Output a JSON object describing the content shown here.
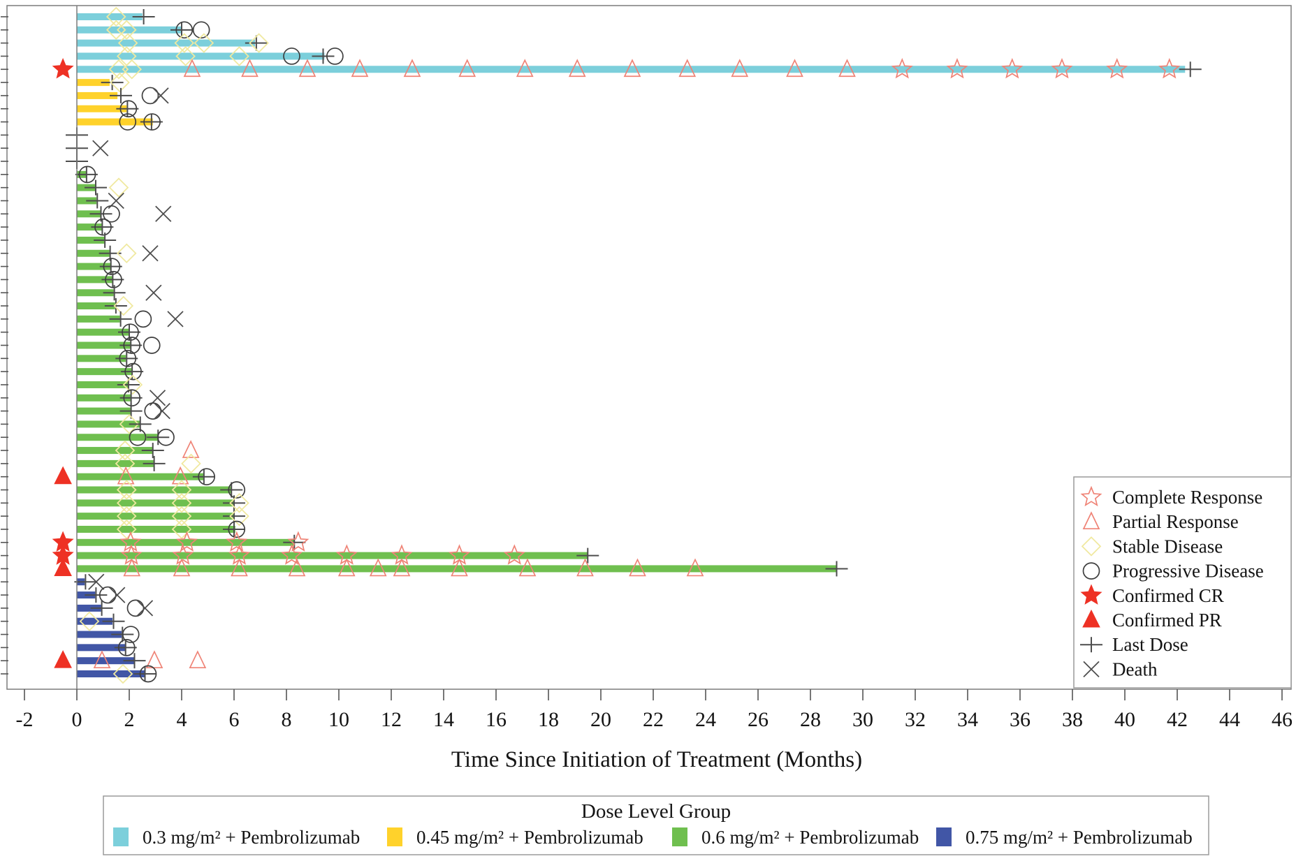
{
  "chart_data": {
    "type": "swimmer",
    "xlabel": "Time Since Initiation of Treatment (Months)",
    "x_ticks": [
      -2,
      0,
      2,
      4,
      6,
      8,
      10,
      12,
      14,
      16,
      18,
      20,
      22,
      24,
      26,
      28,
      30,
      32,
      34,
      36,
      38,
      40,
      42,
      44,
      46
    ],
    "xlim": [
      -2.67,
      46.35
    ],
    "grid": false,
    "colors": {
      "group1": "#7CCFDB",
      "group2": "#FFD22B",
      "group3": "#6FBF4F",
      "group4": "#4156A6",
      "confirmed_red": "#EE3124",
      "open_red": "#EF8376",
      "stable_yellow": "#F0E9A0",
      "circle_gray": "#3F3F3F",
      "cross_gray": "#4D4D4D",
      "axis_gray": "#7B7B7B",
      "text": "#141414"
    },
    "dose_legend": {
      "title": "Dose Level Group",
      "entries": [
        {
          "label": "0.3 mg/m² + Pembrolizumab",
          "color": "#7CCFDB"
        },
        {
          "label": "0.45 mg/m² + Pembrolizumab",
          "color": "#FFD22B"
        },
        {
          "label": "0.6 mg/m² + Pembrolizumab",
          "color": "#6FBF4F"
        },
        {
          "label": "0.75 mg/m² + Pembrolizumab",
          "color": "#4156A6"
        }
      ]
    },
    "marker_legend": [
      {
        "label": "Complete Response",
        "marker": "s"
      },
      {
        "label": "Partial Response",
        "marker": "t"
      },
      {
        "label": "Stable Disease",
        "marker": "d"
      },
      {
        "label": "Progressive Disease",
        "marker": "c"
      },
      {
        "label": "Confirmed CR",
        "marker": "S"
      },
      {
        "label": "Confirmed PR",
        "marker": "T"
      },
      {
        "label": "Last Dose",
        "marker": "p"
      },
      {
        "label": "Death",
        "marker": "x"
      }
    ],
    "marker_key": {
      "p": "last-dose",
      "x": "death",
      "c": "progressive-disease",
      "d": "stable-disease",
      "t": "partial-response",
      "s": "complete-response",
      "S": "confirmed-cr",
      "T": "confirmed-pr"
    },
    "patients": [
      {
        "g": 0,
        "bar": 2.5,
        "mk": [
          [
            "d",
            1.5
          ],
          [
            "p",
            2.55
          ]
        ]
      },
      {
        "g": 0,
        "bar": 4.0,
        "mk": [
          [
            "d",
            1.5
          ],
          [
            "d",
            1.9
          ],
          [
            "p",
            4.0
          ],
          [
            "c",
            4.1
          ],
          [
            "c",
            4.75
          ]
        ]
      },
      {
        "g": 0,
        "bar": 6.8,
        "mk": [
          [
            "d",
            1.95
          ],
          [
            "d",
            4.1
          ],
          [
            "d",
            4.85
          ],
          [
            "p",
            6.85
          ],
          [
            "d",
            6.95
          ]
        ]
      },
      {
        "g": 0,
        "bar": 9.45,
        "mk": [
          [
            "d",
            1.9
          ],
          [
            "d",
            4.15
          ],
          [
            "d",
            6.2
          ],
          [
            "c",
            8.2
          ],
          [
            "p",
            9.4
          ],
          [
            "c",
            9.85
          ]
        ]
      },
      {
        "g": 0,
        "bar": 42.3,
        "mk": [
          [
            "S",
            -0.53
          ],
          [
            "d",
            1.6
          ],
          [
            "d",
            2.1
          ],
          [
            "t",
            4.4
          ],
          [
            "t",
            6.6
          ],
          [
            "t",
            8.8
          ],
          [
            "t",
            10.8
          ],
          [
            "t",
            12.8
          ],
          [
            "t",
            14.9
          ],
          [
            "t",
            17.1
          ],
          [
            "t",
            19.1
          ],
          [
            "t",
            21.2
          ],
          [
            "t",
            23.3
          ],
          [
            "t",
            25.3
          ],
          [
            "t",
            27.4
          ],
          [
            "t",
            29.4
          ],
          [
            "s",
            31.5
          ],
          [
            "s",
            33.6
          ],
          [
            "s",
            35.7
          ],
          [
            "s",
            37.6
          ],
          [
            "s",
            39.7
          ],
          [
            "s",
            41.7
          ],
          [
            "p",
            42.5
          ]
        ]
      },
      {
        "g": 1,
        "bar": 1.25,
        "mk": [
          [
            "p",
            1.35
          ],
          [
            "d",
            1.64
          ]
        ]
      },
      {
        "g": 1,
        "bar": 1.55,
        "mk": [
          [
            "p",
            1.68
          ],
          [
            "c",
            2.8
          ],
          [
            "x",
            3.2
          ]
        ]
      },
      {
        "g": 1,
        "bar": 1.9,
        "mk": [
          [
            "p",
            1.93
          ],
          [
            "c",
            1.97
          ]
        ]
      },
      {
        "g": 1,
        "bar": 2.9,
        "mk": [
          [
            "c",
            1.94
          ],
          [
            "p",
            2.85
          ],
          [
            "c",
            2.87
          ]
        ]
      },
      {
        "g": -1,
        "bar": 0,
        "mk": [
          [
            "p",
            0
          ]
        ]
      },
      {
        "g": -1,
        "bar": 0,
        "mk": [
          [
            "p",
            0
          ],
          [
            "x",
            0.9
          ]
        ]
      },
      {
        "g": -1,
        "bar": 0,
        "mk": [
          [
            "p",
            0
          ]
        ]
      },
      {
        "g": 2,
        "bar": 0.35,
        "mk": [
          [
            "p",
            0.37
          ],
          [
            "c",
            0.4
          ]
        ]
      },
      {
        "g": 2,
        "bar": 0.7,
        "mk": [
          [
            "p",
            0.72
          ],
          [
            "d",
            1.6
          ]
        ]
      },
      {
        "g": 2,
        "bar": 0.75,
        "mk": [
          [
            "p",
            0.78
          ],
          [
            "x",
            1.5
          ]
        ]
      },
      {
        "g": 2,
        "bar": 0.9,
        "mk": [
          [
            "p",
            0.92
          ],
          [
            "c",
            1.32
          ],
          [
            "x",
            3.3
          ]
        ]
      },
      {
        "g": 2,
        "bar": 0.95,
        "mk": [
          [
            "p",
            0.97
          ],
          [
            "c",
            1.0
          ]
        ]
      },
      {
        "g": 2,
        "bar": 1.05,
        "mk": [
          [
            "p",
            1.07
          ]
        ]
      },
      {
        "g": 2,
        "bar": 1.25,
        "mk": [
          [
            "p",
            1.27
          ],
          [
            "d",
            1.9
          ],
          [
            "x",
            2.8
          ]
        ]
      },
      {
        "g": 2,
        "bar": 1.28,
        "mk": [
          [
            "p",
            1.3
          ],
          [
            "c",
            1.33
          ]
        ]
      },
      {
        "g": 2,
        "bar": 1.35,
        "mk": [
          [
            "p",
            1.37
          ],
          [
            "c",
            1.4
          ]
        ]
      },
      {
        "g": 2,
        "bar": 1.4,
        "mk": [
          [
            "p",
            1.43
          ],
          [
            "x",
            2.93
          ]
        ]
      },
      {
        "g": 2,
        "bar": 1.46,
        "mk": [
          [
            "p",
            1.49
          ],
          [
            "d",
            1.78
          ]
        ]
      },
      {
        "g": 2,
        "bar": 1.64,
        "mk": [
          [
            "p",
            1.67
          ],
          [
            "c",
            2.53
          ],
          [
            "x",
            3.76
          ]
        ]
      },
      {
        "g": 2,
        "bar": 2.0,
        "mk": [
          [
            "p",
            2.0
          ],
          [
            "c",
            2.04
          ]
        ]
      },
      {
        "g": 2,
        "bar": 2.05,
        "mk": [
          [
            "p",
            2.06
          ],
          [
            "c",
            2.1
          ],
          [
            "c",
            2.86
          ]
        ]
      },
      {
        "g": 2,
        "bar": 1.87,
        "mk": [
          [
            "p",
            1.9
          ],
          [
            "c",
            1.94
          ]
        ]
      },
      {
        "g": 2,
        "bar": 2.09,
        "mk": [
          [
            "p",
            2.11
          ],
          [
            "c",
            2.15
          ]
        ]
      },
      {
        "g": 2,
        "bar": 1.95,
        "mk": [
          [
            "p",
            1.97
          ],
          [
            "d",
            2.13
          ]
        ]
      },
      {
        "g": 2,
        "bar": 2.05,
        "mk": [
          [
            "p",
            2.07
          ],
          [
            "c",
            2.1
          ],
          [
            "x",
            3.08
          ]
        ]
      },
      {
        "g": 2,
        "bar": 2.05,
        "mk": [
          [
            "p",
            2.07
          ],
          [
            "c",
            2.9
          ],
          [
            "x",
            3.26
          ]
        ]
      },
      {
        "g": 2,
        "bar": 2.4,
        "mk": [
          [
            "d",
            2.0
          ],
          [
            "p",
            2.42
          ]
        ]
      },
      {
        "g": 2,
        "bar": 3.08,
        "mk": [
          [
            "c",
            2.32
          ],
          [
            "p",
            3.1
          ],
          [
            "c",
            3.4
          ]
        ]
      },
      {
        "g": 2,
        "bar": 2.9,
        "mk": [
          [
            "d",
            1.84
          ],
          [
            "p",
            2.9
          ],
          [
            "t",
            4.35
          ]
        ]
      },
      {
        "g": 2,
        "bar": 2.95,
        "mk": [
          [
            "d",
            1.84
          ],
          [
            "p",
            2.95
          ],
          [
            "d",
            4.36
          ]
        ]
      },
      {
        "g": 2,
        "bar": 4.85,
        "mk": [
          [
            "T",
            -0.53
          ],
          [
            "t",
            1.87
          ],
          [
            "t",
            3.95
          ],
          [
            "p",
            4.85
          ],
          [
            "c",
            4.95
          ]
        ]
      },
      {
        "g": 2,
        "bar": 5.9,
        "mk": [
          [
            "d",
            1.9
          ],
          [
            "d",
            4.0
          ],
          [
            "p",
            5.9
          ],
          [
            "c",
            6.1
          ]
        ]
      },
      {
        "g": 2,
        "bar": 6.0,
        "mk": [
          [
            "d",
            1.9
          ],
          [
            "d",
            4.0
          ],
          [
            "p",
            6.0
          ],
          [
            "d",
            6.2
          ]
        ]
      },
      {
        "g": 2,
        "bar": 6.0,
        "mk": [
          [
            "d",
            1.9
          ],
          [
            "d",
            4.0
          ],
          [
            "p",
            6.0
          ],
          [
            "d",
            6.2
          ]
        ]
      },
      {
        "g": 2,
        "bar": 6.05,
        "mk": [
          [
            "d",
            1.9
          ],
          [
            "d",
            4.0
          ],
          [
            "p",
            6.0
          ],
          [
            "c",
            6.1
          ]
        ]
      },
      {
        "g": 2,
        "bar": 8.3,
        "mk": [
          [
            "S",
            -0.53
          ],
          [
            "s",
            2.05
          ],
          [
            "s",
            4.2
          ],
          [
            "s",
            6.1
          ],
          [
            "p",
            8.3
          ],
          [
            "s",
            8.45
          ]
        ]
      },
      {
        "g": 2,
        "bar": 19.5,
        "mk": [
          [
            "S",
            -0.53
          ],
          [
            "s",
            2.08
          ],
          [
            "s",
            4.05
          ],
          [
            "s",
            6.2
          ],
          [
            "s",
            8.2
          ],
          [
            "s",
            10.3
          ],
          [
            "s",
            12.4
          ],
          [
            "s",
            14.6
          ],
          [
            "s",
            16.7
          ],
          [
            "p",
            19.5
          ]
        ]
      },
      {
        "g": 2,
        "bar": 29.0,
        "mk": [
          [
            "T",
            -0.53
          ],
          [
            "t",
            2.1
          ],
          [
            "t",
            4.0
          ],
          [
            "t",
            6.2
          ],
          [
            "t",
            8.4
          ],
          [
            "t",
            10.3
          ],
          [
            "t",
            11.5
          ],
          [
            "t",
            12.4
          ],
          [
            "t",
            14.6
          ],
          [
            "t",
            17.2
          ],
          [
            "t",
            19.4
          ],
          [
            "t",
            21.4
          ],
          [
            "t",
            23.6
          ],
          [
            "p",
            29.0
          ]
        ]
      },
      {
        "g": 3,
        "bar": 0.3,
        "mk": [
          [
            "p",
            0.33
          ],
          [
            "x",
            0.74
          ]
        ]
      },
      {
        "g": 3,
        "bar": 0.7,
        "mk": [
          [
            "p",
            0.73
          ],
          [
            "c",
            1.18
          ],
          [
            "x",
            1.54
          ]
        ]
      },
      {
        "g": 3,
        "bar": 0.92,
        "mk": [
          [
            "p",
            0.95
          ],
          [
            "c",
            2.24
          ],
          [
            "x",
            2.6
          ]
        ]
      },
      {
        "g": 3,
        "bar": 1.36,
        "mk": [
          [
            "d",
            0.48
          ],
          [
            "p",
            1.4
          ]
        ]
      },
      {
        "g": 3,
        "bar": 1.71,
        "mk": [
          [
            "p",
            1.74
          ],
          [
            "c",
            2.06
          ]
        ]
      },
      {
        "g": 3,
        "bar": 1.84,
        "mk": [
          [
            "p",
            1.86
          ],
          [
            "c",
            1.9
          ]
        ]
      },
      {
        "g": 3,
        "bar": 2.19,
        "mk": [
          [
            "T",
            -0.53
          ],
          [
            "t",
            0.96
          ],
          [
            "p",
            2.2
          ],
          [
            "t",
            2.96
          ],
          [
            "t",
            4.61
          ]
        ]
      },
      {
        "g": 3,
        "bar": 2.59,
        "mk": [
          [
            "d",
            1.76
          ],
          [
            "p",
            2.6
          ],
          [
            "c",
            2.72
          ]
        ]
      }
    ]
  }
}
